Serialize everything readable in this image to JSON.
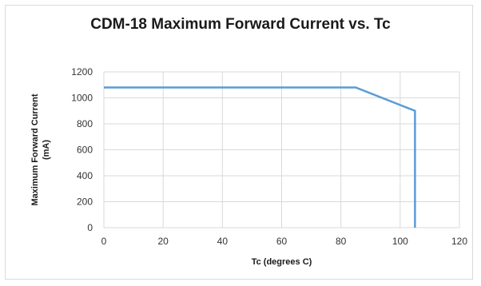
{
  "chart_data": {
    "type": "line",
    "title": "CDM-18 Maximum Forward Current vs. Tc",
    "xlabel": "Tc (degrees C)",
    "ylabel_line1": "Maximum Forward Current",
    "ylabel_line2": "(mA)",
    "xlim": [
      0,
      120
    ],
    "ylim": [
      0,
      1200
    ],
    "x_ticks": [
      0,
      20,
      40,
      60,
      80,
      100,
      120
    ],
    "y_ticks": [
      0,
      200,
      400,
      600,
      800,
      1000,
      1200
    ],
    "grid": true,
    "series": [
      {
        "color": "#5b9bd5",
        "points": [
          [
            0,
            1080
          ],
          [
            85,
            1080
          ],
          [
            105,
            900
          ],
          [
            105,
            0
          ]
        ]
      }
    ]
  }
}
